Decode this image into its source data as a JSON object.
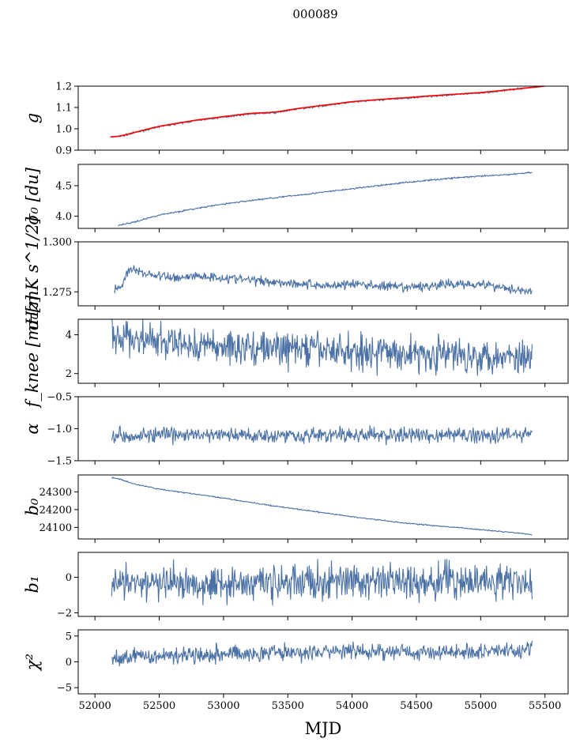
{
  "figure_title": "000089",
  "xlabel": "MJD",
  "chart_data": [
    {
      "type": "line",
      "id": "g",
      "ylabel": "g",
      "ylim": [
        0.9,
        1.2
      ],
      "yticks": [
        0.9,
        1.0,
        1.1,
        1.2
      ],
      "yticklabels": [
        "0.9",
        "1.0",
        "1.1",
        "1.2"
      ],
      "series": [
        {
          "name": "g",
          "color": "#4c72a5",
          "x": [
            52130,
            52200,
            52300,
            52500,
            52800,
            53000,
            53200,
            53400,
            53600,
            53800,
            54000,
            54200,
            54400,
            54600,
            54800,
            55000,
            55200,
            55400
          ],
          "y": [
            0.962,
            0.965,
            0.98,
            1.01,
            1.04,
            1.055,
            1.07,
            1.075,
            1.095,
            1.11,
            1.125,
            1.135,
            1.143,
            1.152,
            1.16,
            1.168,
            1.18,
            1.195
          ]
        },
        {
          "name": "g model",
          "color": "#ff0000",
          "x": [
            52120,
            52200,
            52300,
            52500,
            52800,
            53000,
            53200,
            53400,
            53600,
            53800,
            54000,
            54200,
            54400,
            54600,
            54800,
            55000,
            55200,
            55500
          ],
          "y": [
            0.962,
            0.966,
            0.982,
            1.012,
            1.042,
            1.057,
            1.072,
            1.078,
            1.097,
            1.112,
            1.127,
            1.137,
            1.145,
            1.154,
            1.162,
            1.17,
            1.182,
            1.2
          ]
        }
      ]
    },
    {
      "type": "line",
      "id": "sigma0_du",
      "ylabel": "σ₀ [du]",
      "ylim": [
        3.8,
        4.85
      ],
      "yticks": [
        4.0,
        4.5
      ],
      "yticklabels": [
        "4.0",
        "4.5"
      ],
      "series": [
        {
          "name": "sigma0",
          "color": "#4c72a5",
          "x": [
            52180,
            52300,
            52500,
            52800,
            53000,
            53300,
            53600,
            54000,
            54400,
            54800,
            55200,
            55400
          ],
          "y": [
            3.85,
            3.9,
            4.02,
            4.13,
            4.2,
            4.28,
            4.35,
            4.45,
            4.55,
            4.63,
            4.68,
            4.72
          ]
        }
      ]
    },
    {
      "type": "line",
      "id": "sigma0_mk",
      "ylabel": "σ₀[mK s^1/2]",
      "ylim": [
        1.268,
        1.3
      ],
      "yticks": [
        1.275,
        1.3
      ],
      "yticklabels": [
        "1.275",
        "1.300"
      ],
      "series": [
        {
          "name": "sigma0_mk",
          "color": "#4c72a5",
          "x": [
            52150,
            52200,
            52250,
            52300,
            52400,
            52600,
            52800,
            53000,
            53200,
            53400,
            53600,
            53800,
            54000,
            54200,
            54400,
            54600,
            54800,
            55000,
            55200,
            55300,
            55400
          ],
          "y": [
            1.276,
            1.277,
            1.285,
            1.286,
            1.284,
            1.282,
            1.283,
            1.282,
            1.281,
            1.28,
            1.279,
            1.278,
            1.279,
            1.278,
            1.277,
            1.278,
            1.279,
            1.279,
            1.277,
            1.276,
            1.275
          ]
        }
      ]
    },
    {
      "type": "line",
      "id": "fknee",
      "ylabel": "f_knee [mHz]",
      "ylim": [
        1.5,
        4.8
      ],
      "yticks": [
        2,
        4
      ],
      "yticklabels": [
        "2",
        "4"
      ],
      "series": [
        {
          "name": "fknee",
          "color": "#4c72a5",
          "x": [
            52130,
            52300,
            52500,
            52800,
            53000,
            53400,
            53800,
            54200,
            54600,
            55000,
            55400
          ],
          "y": [
            3.9,
            3.8,
            3.6,
            3.45,
            3.4,
            3.3,
            3.2,
            3.1,
            3.0,
            2.95,
            2.9
          ]
        }
      ]
    },
    {
      "type": "line",
      "id": "alpha",
      "ylabel": "α",
      "ylim": [
        -1.5,
        -0.5
      ],
      "yticks": [
        -1.5,
        -1.0,
        -0.5
      ],
      "yticklabels": [
        "−1.5",
        "−1.0",
        "−0.5"
      ],
      "series": [
        {
          "name": "alpha",
          "color": "#4c72a5",
          "x": [
            52130,
            52500,
            53000,
            53500,
            54000,
            54500,
            55000,
            55400
          ],
          "y": [
            -1.1,
            -1.1,
            -1.1,
            -1.1,
            -1.1,
            -1.1,
            -1.1,
            -1.08
          ]
        }
      ]
    },
    {
      "type": "line",
      "id": "b0",
      "ylabel": "b₀",
      "ylim": [
        24035,
        24395
      ],
      "yticks": [
        24100,
        24200,
        24300
      ],
      "yticklabels": [
        "24100",
        "24200",
        "24300"
      ],
      "series": [
        {
          "name": "b0",
          "color": "#4c72a5",
          "x": [
            52130,
            52200,
            52300,
            52500,
            52800,
            53000,
            53300,
            53600,
            54000,
            54400,
            54800,
            55200,
            55400
          ],
          "y": [
            24380,
            24370,
            24345,
            24315,
            24285,
            24265,
            24230,
            24200,
            24160,
            24125,
            24100,
            24075,
            24060
          ]
        }
      ]
    },
    {
      "type": "line",
      "id": "b1",
      "ylabel": "b₁",
      "ylim": [
        -2.2,
        1.4
      ],
      "yticks": [
        -2,
        0
      ],
      "yticklabels": [
        "−2",
        "0"
      ],
      "series": [
        {
          "name": "b1",
          "color": "#4c72a5",
          "x": [
            52130,
            52500,
            53000,
            53500,
            54000,
            54500,
            55000,
            55400
          ],
          "y": [
            -0.4,
            -0.35,
            -0.3,
            -0.3,
            -0.25,
            -0.25,
            -0.2,
            -0.3
          ]
        }
      ]
    },
    {
      "type": "line",
      "id": "chi2",
      "ylabel": "χ²",
      "ylim": [
        -6.2,
        6.2
      ],
      "yticks": [
        -5,
        0,
        5
      ],
      "yticklabels": [
        "−5",
        "0",
        "5"
      ],
      "series": [
        {
          "name": "chi2",
          "color": "#4c72a5",
          "x": [
            52130,
            52300,
            52600,
            53000,
            53400,
            53800,
            54200,
            54600,
            55000,
            55400
          ],
          "y": [
            0.3,
            1.0,
            1.4,
            1.6,
            1.8,
            1.9,
            2.0,
            1.9,
            2.0,
            2.4
          ]
        }
      ]
    }
  ],
  "x_axis": {
    "xlim": [
      51870,
      55680
    ],
    "xticks": [
      52000,
      52500,
      53000,
      53500,
      54000,
      54500,
      55000,
      55500
    ],
    "xticklabels": [
      "52000",
      "52500",
      "53000",
      "53500",
      "54000",
      "54500",
      "55000",
      "55500"
    ]
  }
}
